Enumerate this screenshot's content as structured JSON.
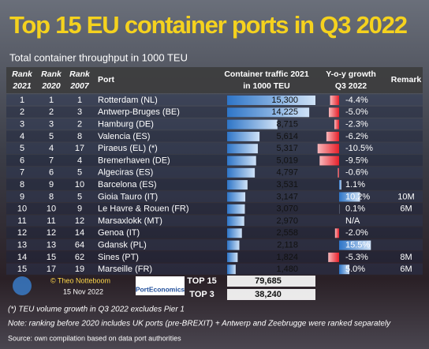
{
  "title": "Top 15 EU container ports in Q3 2022",
  "subtitle": "Total container throughput in 1000 TEU",
  "table": {
    "headers": {
      "rank_2021": "Rank 2021",
      "rank_2020": "Rank 2020",
      "rank_2007": "Rank 2007",
      "port": "Port",
      "traffic": "Container traffic 2021 in 1000 TEU",
      "growth": "Y-o-y growth Q3 2022",
      "remark": "Remark"
    },
    "rows": [
      {
        "rank_2021": 1,
        "rank_2020": 1,
        "rank_2007": 1,
        "port": "Rotterdam (NL)",
        "traffic": {
          "value": 15300,
          "label": "15,300"
        },
        "growth": {
          "value": -4.4,
          "label": "-4.4%"
        }
      },
      {
        "rank_2021": 2,
        "rank_2020": 2,
        "rank_2007": 3,
        "port": "Antwerp-Bruges (BE)",
        "traffic": {
          "value": 14225,
          "label": "14,225"
        },
        "growth": {
          "value": -5.0,
          "label": "-5.0%"
        }
      },
      {
        "rank_2021": 3,
        "rank_2020": 3,
        "rank_2007": 2,
        "port": "Hamburg (DE)",
        "traffic": {
          "value": 8715,
          "label": "8,715"
        },
        "growth": {
          "value": -2.3,
          "label": "-2.3%"
        }
      },
      {
        "rank_2021": 4,
        "rank_2020": 5,
        "rank_2007": 8,
        "port": "Valencia (ES)",
        "traffic": {
          "value": 5614,
          "label": "5,614"
        },
        "growth": {
          "value": -6.2,
          "label": "-6.2%"
        }
      },
      {
        "rank_2021": 5,
        "rank_2020": 4,
        "rank_2007": 17,
        "port": "Piraeus (EL) (*)",
        "traffic": {
          "value": 5317,
          "label": "5,317"
        },
        "growth": {
          "value": -10.5,
          "label": "-10.5%"
        }
      },
      {
        "rank_2021": 6,
        "rank_2020": 7,
        "rank_2007": 4,
        "port": "Bremerhaven (DE)",
        "traffic": {
          "value": 5019,
          "label": "5,019"
        },
        "growth": {
          "value": -9.5,
          "label": "-9.5%"
        }
      },
      {
        "rank_2021": 7,
        "rank_2020": 6,
        "rank_2007": 5,
        "port": "Algeciras (ES)",
        "traffic": {
          "value": 4797,
          "label": "4,797"
        },
        "growth": {
          "value": -0.6,
          "label": "-0.6%"
        }
      },
      {
        "rank_2021": 8,
        "rank_2020": 9,
        "rank_2007": 10,
        "port": "Barcelona (ES)",
        "traffic": {
          "value": 3531,
          "label": "3,531"
        },
        "growth": {
          "value": 1.1,
          "label": "1.1%"
        }
      },
      {
        "rank_2021": 9,
        "rank_2020": 8,
        "rank_2007": 5,
        "port": "Gioia Tauro (IT)",
        "traffic": {
          "value": 3147,
          "label": "3,147"
        },
        "growth": {
          "value": 10.2,
          "label": "10.2%"
        },
        "remark": "10M"
      },
      {
        "rank_2021": 10,
        "rank_2020": 10,
        "rank_2007": 9,
        "port": "Le Havre & Rouen (FR)",
        "traffic": {
          "value": 3070,
          "label": "3,070"
        },
        "growth": {
          "value": 0.1,
          "label": "0.1%"
        },
        "remark": "6M"
      },
      {
        "rank_2021": 11,
        "rank_2020": 11,
        "rank_2007": 12,
        "port": "Marsaxlokk (MT)",
        "traffic": {
          "value": 2970,
          "label": "2,970"
        },
        "growth": {
          "label": "N/A"
        }
      },
      {
        "rank_2021": 12,
        "rank_2020": 12,
        "rank_2007": 14,
        "port": "Genoa (IT)",
        "traffic": {
          "value": 2558,
          "label": "2,558"
        },
        "growth": {
          "value": -2.0,
          "label": "-2.0%"
        }
      },
      {
        "rank_2021": 13,
        "rank_2020": 13,
        "rank_2007": 64,
        "port": "Gdansk (PL)",
        "traffic": {
          "value": 2118,
          "label": "2,118"
        },
        "growth": {
          "value": 15.5,
          "label": "15.5%"
        }
      },
      {
        "rank_2021": 14,
        "rank_2020": 15,
        "rank_2007": 62,
        "port": "Sines (PT)",
        "traffic": {
          "value": 1824,
          "label": "1,824"
        },
        "growth": {
          "value": -5.3,
          "label": "-5.3%"
        },
        "remark": "8M"
      },
      {
        "rank_2021": 15,
        "rank_2020": 17,
        "rank_2007": 19,
        "port": "Marseille (FR)",
        "traffic": {
          "value": 1480,
          "label": "1,480"
        },
        "growth": {
          "value": 5.0,
          "label": "5.0%"
        },
        "remark": "6M"
      }
    ],
    "totals": [
      {
        "label": "TOP 15",
        "value": "79,685"
      },
      {
        "label": "TOP 3",
        "value": "38,240"
      }
    ]
  },
  "credits": {
    "author": "© Theo Notteboom",
    "date": "15 Nov 2022",
    "brand": "PortEconomics"
  },
  "notes": [
    "(*) TEU volume growth in Q3 2022 excludes Pier 1",
    "Note: ranking before 2020 includes UK ports (pre-BREXIT) + Antwerp and Zeebrugge were ranked separately",
    "Source: own compilation based on data port authorities"
  ]
}
